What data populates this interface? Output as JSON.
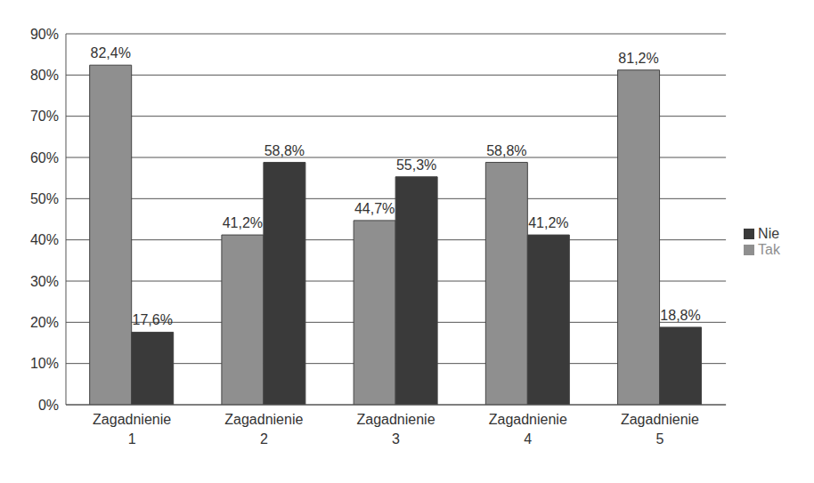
{
  "chart_data": {
    "type": "bar",
    "categories": [
      "Zagadnienie 1",
      "Zagadnienie 2",
      "Zagadnienie 3",
      "Zagadnienie 4",
      "Zagadnienie 5"
    ],
    "series": [
      {
        "name": "Tak",
        "color": "#8f8f8f",
        "values": [
          82.4,
          41.2,
          44.7,
          58.8,
          81.2
        ],
        "value_labels": [
          "82,4%",
          "41,2%",
          "44,7%",
          "58,8%",
          "81,2%"
        ]
      },
      {
        "name": "Nie",
        "color": "#3a3a3a",
        "values": [
          17.6,
          58.8,
          55.3,
          41.2,
          18.8
        ],
        "value_labels": [
          "17,6%",
          "58,8%",
          "55,3%",
          "41,2%",
          "18,8%"
        ]
      }
    ],
    "ylim": [
      0,
      90
    ],
    "yticks": [
      {
        "value": 0,
        "label": "0%"
      },
      {
        "value": 10,
        "label": "10%"
      },
      {
        "value": 20,
        "label": "20%"
      },
      {
        "value": 30,
        "label": "30%"
      },
      {
        "value": 40,
        "label": "40%"
      },
      {
        "value": 50,
        "label": "50%"
      },
      {
        "value": 60,
        "label": "60%"
      },
      {
        "value": 70,
        "label": "70%"
      },
      {
        "value": 80,
        "label": "80%"
      },
      {
        "value": 90,
        "label": "90%"
      }
    ],
    "grid": true,
    "legend": "right",
    "data_labels": true
  }
}
